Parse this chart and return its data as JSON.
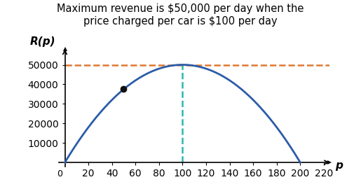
{
  "title_line1": "Maximum revenue is $50,000 per day when the",
  "title_line2": "price charged per car is $100 per day",
  "xlabel": "p",
  "ylabel": "R(p)",
  "xlim": [
    -5,
    225
  ],
  "ylim": [
    -2000,
    58000
  ],
  "xticks": [
    0,
    20,
    40,
    60,
    80,
    100,
    120,
    140,
    160,
    180,
    200,
    220
  ],
  "yticks": [
    10000,
    20000,
    30000,
    40000,
    50000
  ],
  "curve_color": "#2b5ca8",
  "curve_lw": 2.0,
  "p_start": 0,
  "p_end": 200,
  "hline_y": 50000,
  "hline_xmin": 0,
  "hline_xmax": 225,
  "hline_color": "#e07830",
  "hline_lw": 1.8,
  "vline_x": 100,
  "vline_ymin": 0,
  "vline_ymax": 50000,
  "vline_color": "#2ab8b0",
  "vline_lw": 1.8,
  "dot_x": 50,
  "dot_y": 37500,
  "dot_color": "#111111",
  "dot_size": 6,
  "background_color": "#ffffff",
  "title_fontsize": 10.5,
  "axis_label_fontsize": 11,
  "tick_fontsize": 9,
  "zero_label": "0"
}
